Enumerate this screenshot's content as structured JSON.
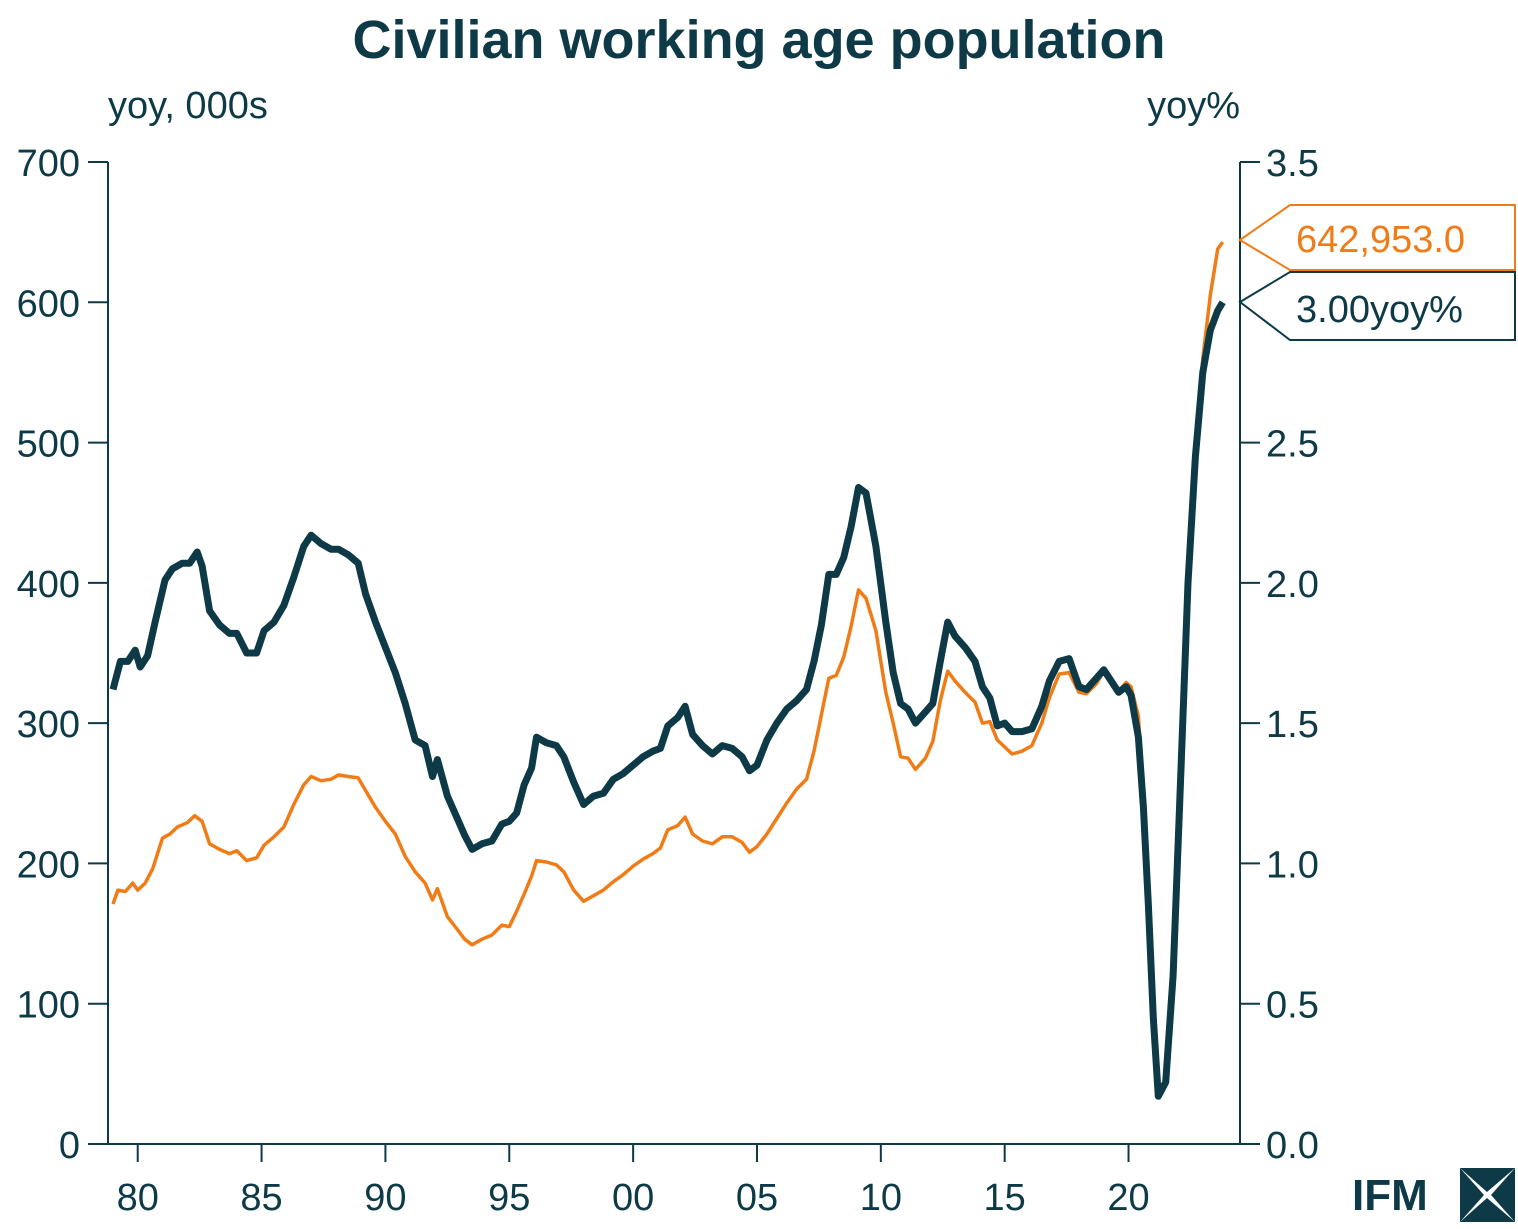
{
  "chart_data": {
    "type": "line",
    "title": "Civilian working age population",
    "left_axis_label": "yoy, 000s",
    "right_axis_label": "yoy%",
    "ylim_left": [
      0,
      700
    ],
    "ylim_right": [
      0.0,
      3.5
    ],
    "xlim": [
      1978.8,
      2024.5
    ],
    "left_ticks": [
      "0",
      "100",
      "200",
      "300",
      "400",
      "500",
      "600",
      "700"
    ],
    "right_ticks": [
      "0.0",
      "0.5",
      "1.0",
      "1.5",
      "2.0",
      "2.5",
      "3.0",
      "3.5"
    ],
    "x_tick_labels": [
      "80",
      "85",
      "90",
      "95",
      "00",
      "05",
      "10",
      "15",
      "20"
    ],
    "x_tick_years": [
      1980,
      1985,
      1990,
      1995,
      2000,
      2005,
      2010,
      2015,
      2020
    ],
    "series": [
      {
        "name": "yoy, 000s (left)",
        "axis": "left",
        "color": "#f07c17",
        "points": [
          [
            1979.0,
            171
          ],
          [
            1979.2,
            181
          ],
          [
            1979.5,
            180
          ],
          [
            1979.8,
            186
          ],
          [
            1980.0,
            181
          ],
          [
            1980.3,
            186
          ],
          [
            1980.6,
            196
          ],
          [
            1981.0,
            218
          ],
          [
            1981.3,
            221
          ],
          [
            1981.6,
            226
          ],
          [
            1982.0,
            229
          ],
          [
            1982.3,
            234
          ],
          [
            1982.6,
            230
          ],
          [
            1982.9,
            214
          ],
          [
            1983.3,
            210
          ],
          [
            1983.7,
            207
          ],
          [
            1984.0,
            209
          ],
          [
            1984.4,
            202
          ],
          [
            1984.8,
            204
          ],
          [
            1985.1,
            213
          ],
          [
            1985.5,
            219
          ],
          [
            1985.9,
            226
          ],
          [
            1986.3,
            242
          ],
          [
            1986.7,
            256
          ],
          [
            1987.0,
            262
          ],
          [
            1987.4,
            259
          ],
          [
            1987.8,
            260
          ],
          [
            1988.1,
            263
          ],
          [
            1988.5,
            262
          ],
          [
            1988.9,
            261
          ],
          [
            1989.2,
            252
          ],
          [
            1989.6,
            240
          ],
          [
            1990.0,
            230
          ],
          [
            1990.4,
            221
          ],
          [
            1990.8,
            205
          ],
          [
            1991.2,
            194
          ],
          [
            1991.6,
            186
          ],
          [
            1991.9,
            174
          ],
          [
            1992.1,
            182
          ],
          [
            1992.5,
            162
          ],
          [
            1992.9,
            153
          ],
          [
            1993.2,
            146
          ],
          [
            1993.5,
            142
          ],
          [
            1993.9,
            146
          ],
          [
            1994.3,
            149
          ],
          [
            1994.7,
            156
          ],
          [
            1995.0,
            155
          ],
          [
            1995.3,
            166
          ],
          [
            1995.6,
            178
          ],
          [
            1995.9,
            191
          ],
          [
            1996.1,
            202
          ],
          [
            1996.5,
            201
          ],
          [
            1996.9,
            199
          ],
          [
            1997.2,
            194
          ],
          [
            1997.6,
            181
          ],
          [
            1998.0,
            173
          ],
          [
            1998.4,
            177
          ],
          [
            1998.8,
            181
          ],
          [
            1999.2,
            187
          ],
          [
            1999.6,
            192
          ],
          [
            2000.0,
            198
          ],
          [
            2000.4,
            203
          ],
          [
            2000.8,
            207
          ],
          [
            2001.1,
            211
          ],
          [
            2001.4,
            224
          ],
          [
            2001.8,
            227
          ],
          [
            2002.1,
            233
          ],
          [
            2002.4,
            221
          ],
          [
            2002.8,
            216
          ],
          [
            2003.2,
            214
          ],
          [
            2003.6,
            219
          ],
          [
            2004.0,
            219
          ],
          [
            2004.4,
            215
          ],
          [
            2004.7,
            208
          ],
          [
            2005.0,
            212
          ],
          [
            2005.4,
            221
          ],
          [
            2005.8,
            232
          ],
          [
            2006.2,
            243
          ],
          [
            2006.6,
            253
          ],
          [
            2007.0,
            260
          ],
          [
            2007.3,
            280
          ],
          [
            2007.6,
            306
          ],
          [
            2007.9,
            332
          ],
          [
            2008.2,
            334
          ],
          [
            2008.5,
            347
          ],
          [
            2008.8,
            369
          ],
          [
            2009.1,
            395
          ],
          [
            2009.4,
            389
          ],
          [
            2009.8,
            366
          ],
          [
            2010.2,
            322
          ],
          [
            2010.5,
            300
          ],
          [
            2010.8,
            276
          ],
          [
            2011.1,
            275
          ],
          [
            2011.4,
            267
          ],
          [
            2011.8,
            275
          ],
          [
            2012.1,
            287
          ],
          [
            2012.4,
            316
          ],
          [
            2012.7,
            337
          ],
          [
            2013.0,
            330
          ],
          [
            2013.4,
            322
          ],
          [
            2013.8,
            315
          ],
          [
            2014.1,
            300
          ],
          [
            2014.4,
            301
          ],
          [
            2014.7,
            288
          ],
          [
            2015.0,
            283
          ],
          [
            2015.3,
            278
          ],
          [
            2015.7,
            280
          ],
          [
            2016.1,
            284
          ],
          [
            2016.5,
            300
          ],
          [
            2016.8,
            318
          ],
          [
            2017.2,
            335
          ],
          [
            2017.6,
            336
          ],
          [
            2018.0,
            322
          ],
          [
            2018.3,
            321
          ],
          [
            2018.7,
            328
          ],
          [
            2019.0,
            337
          ],
          [
            2019.3,
            331
          ],
          [
            2019.6,
            323
          ],
          [
            2019.9,
            329
          ],
          [
            2020.1,
            326
          ],
          [
            2020.4,
            305
          ],
          [
            2020.6,
            250
          ],
          [
            2020.8,
            180
          ],
          [
            2021.0,
            90
          ],
          [
            2021.2,
            40
          ],
          [
            2021.5,
            45
          ],
          [
            2021.8,
            120
          ],
          [
            2022.1,
            260
          ],
          [
            2022.4,
            400
          ],
          [
            2022.7,
            490
          ],
          [
            2023.0,
            560
          ],
          [
            2023.3,
            605
          ],
          [
            2023.6,
            638
          ],
          [
            2023.8,
            643
          ]
        ]
      },
      {
        "name": "yoy% (right)",
        "axis": "right",
        "color": "#0d3a46",
        "points": [
          [
            1979.0,
            1.62
          ],
          [
            1979.3,
            1.72
          ],
          [
            1979.6,
            1.72
          ],
          [
            1979.9,
            1.76
          ],
          [
            1980.1,
            1.7
          ],
          [
            1980.4,
            1.74
          ],
          [
            1980.7,
            1.86
          ],
          [
            1981.1,
            2.01
          ],
          [
            1981.4,
            2.05
          ],
          [
            1981.8,
            2.07
          ],
          [
            1982.1,
            2.07
          ],
          [
            1982.4,
            2.11
          ],
          [
            1982.6,
            2.06
          ],
          [
            1982.9,
            1.9
          ],
          [
            1983.3,
            1.85
          ],
          [
            1983.7,
            1.82
          ],
          [
            1984.0,
            1.82
          ],
          [
            1984.4,
            1.75
          ],
          [
            1984.8,
            1.75
          ],
          [
            1985.1,
            1.83
          ],
          [
            1985.5,
            1.86
          ],
          [
            1985.9,
            1.92
          ],
          [
            1986.3,
            2.02
          ],
          [
            1986.7,
            2.13
          ],
          [
            1987.0,
            2.17
          ],
          [
            1987.4,
            2.14
          ],
          [
            1987.8,
            2.12
          ],
          [
            1988.1,
            2.12
          ],
          [
            1988.5,
            2.1
          ],
          [
            1988.9,
            2.07
          ],
          [
            1989.2,
            1.96
          ],
          [
            1989.6,
            1.86
          ],
          [
            1990.0,
            1.77
          ],
          [
            1990.4,
            1.68
          ],
          [
            1990.8,
            1.57
          ],
          [
            1991.2,
            1.44
          ],
          [
            1991.6,
            1.42
          ],
          [
            1991.9,
            1.31
          ],
          [
            1992.1,
            1.37
          ],
          [
            1992.5,
            1.24
          ],
          [
            1992.9,
            1.16
          ],
          [
            1993.2,
            1.1
          ],
          [
            1993.5,
            1.05
          ],
          [
            1993.9,
            1.07
          ],
          [
            1994.3,
            1.08
          ],
          [
            1994.7,
            1.14
          ],
          [
            1995.0,
            1.15
          ],
          [
            1995.3,
            1.18
          ],
          [
            1995.6,
            1.28
          ],
          [
            1995.9,
            1.34
          ],
          [
            1996.1,
            1.45
          ],
          [
            1996.5,
            1.43
          ],
          [
            1996.9,
            1.42
          ],
          [
            1997.2,
            1.38
          ],
          [
            1997.6,
            1.29
          ],
          [
            1998.0,
            1.21
          ],
          [
            1998.4,
            1.24
          ],
          [
            1998.8,
            1.25
          ],
          [
            1999.2,
            1.3
          ],
          [
            1999.6,
            1.32
          ],
          [
            2000.0,
            1.35
          ],
          [
            2000.4,
            1.38
          ],
          [
            2000.8,
            1.4
          ],
          [
            2001.1,
            1.41
          ],
          [
            2001.4,
            1.49
          ],
          [
            2001.8,
            1.52
          ],
          [
            2002.1,
            1.56
          ],
          [
            2002.4,
            1.46
          ],
          [
            2002.8,
            1.42
          ],
          [
            2003.2,
            1.39
          ],
          [
            2003.6,
            1.42
          ],
          [
            2004.0,
            1.41
          ],
          [
            2004.4,
            1.38
          ],
          [
            2004.7,
            1.33
          ],
          [
            2005.0,
            1.35
          ],
          [
            2005.4,
            1.44
          ],
          [
            2005.8,
            1.5
          ],
          [
            2006.2,
            1.55
          ],
          [
            2006.6,
            1.58
          ],
          [
            2007.0,
            1.62
          ],
          [
            2007.3,
            1.72
          ],
          [
            2007.6,
            1.85
          ],
          [
            2007.9,
            2.03
          ],
          [
            2008.2,
            2.03
          ],
          [
            2008.5,
            2.09
          ],
          [
            2008.8,
            2.2
          ],
          [
            2009.1,
            2.34
          ],
          [
            2009.4,
            2.32
          ],
          [
            2009.8,
            2.13
          ],
          [
            2010.2,
            1.86
          ],
          [
            2010.5,
            1.68
          ],
          [
            2010.8,
            1.57
          ],
          [
            2011.1,
            1.55
          ],
          [
            2011.4,
            1.5
          ],
          [
            2011.8,
            1.54
          ],
          [
            2012.1,
            1.57
          ],
          [
            2012.4,
            1.72
          ],
          [
            2012.7,
            1.86
          ],
          [
            2013.0,
            1.81
          ],
          [
            2013.4,
            1.77
          ],
          [
            2013.8,
            1.72
          ],
          [
            2014.1,
            1.63
          ],
          [
            2014.4,
            1.59
          ],
          [
            2014.7,
            1.49
          ],
          [
            2015.0,
            1.5
          ],
          [
            2015.3,
            1.47
          ],
          [
            2015.7,
            1.47
          ],
          [
            2016.1,
            1.48
          ],
          [
            2016.5,
            1.56
          ],
          [
            2016.8,
            1.65
          ],
          [
            2017.2,
            1.72
          ],
          [
            2017.6,
            1.73
          ],
          [
            2018.0,
            1.63
          ],
          [
            2018.3,
            1.62
          ],
          [
            2018.7,
            1.66
          ],
          [
            2019.0,
            1.69
          ],
          [
            2019.3,
            1.65
          ],
          [
            2019.6,
            1.61
          ],
          [
            2019.9,
            1.63
          ],
          [
            2020.1,
            1.6
          ],
          [
            2020.4,
            1.45
          ],
          [
            2020.6,
            1.2
          ],
          [
            2020.8,
            0.85
          ],
          [
            2021.0,
            0.45
          ],
          [
            2021.2,
            0.17
          ],
          [
            2021.5,
            0.22
          ],
          [
            2021.8,
            0.6
          ],
          [
            2022.1,
            1.3
          ],
          [
            2022.4,
            2.0
          ],
          [
            2022.7,
            2.45
          ],
          [
            2023.0,
            2.75
          ],
          [
            2023.3,
            2.9
          ],
          [
            2023.6,
            2.97
          ],
          [
            2023.8,
            3.0
          ]
        ]
      }
    ],
    "callouts": {
      "orange": "642,953.0",
      "teal": "3.00yoy%"
    }
  },
  "logo": {
    "text": "IFM"
  },
  "colors": {
    "orange": "#f07c17",
    "teal": "#0d3a46"
  }
}
